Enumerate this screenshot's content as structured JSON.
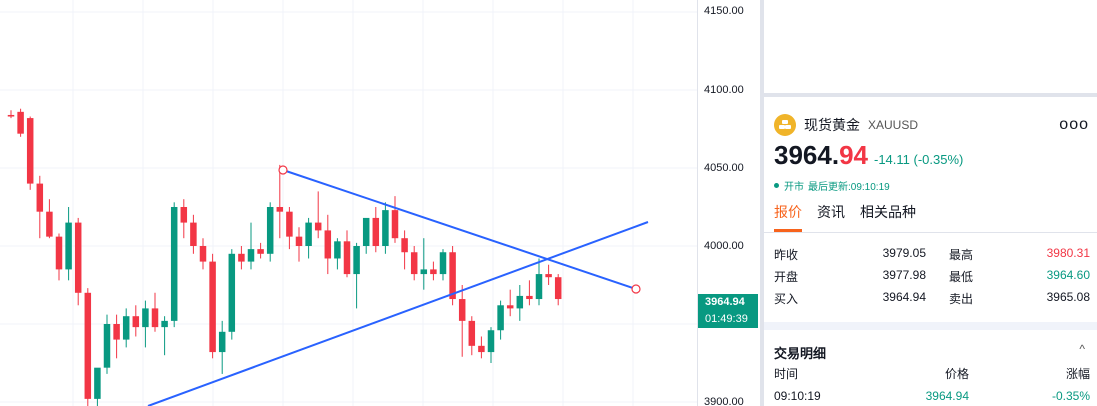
{
  "price_scale": {
    "ticks": [
      "4150.00",
      "4100.00",
      "4050.00",
      "4000.00",
      "3900.00"
    ],
    "current_price": "3964.94",
    "countdown": "01:49:39"
  },
  "colors": {
    "up": "#089981",
    "down": "#f23645",
    "trendline": "#2962ff",
    "accent": "#f7631c"
  },
  "chart": {
    "candle_count": 64,
    "note_values": "OHLC series approximated from screenshot"
  },
  "symbol": {
    "name": "现货黄金",
    "code": "XAUUSD",
    "icon": "gold-bars-icon",
    "more_icon": "ooo",
    "price_int": "3964.",
    "price_dec": "94",
    "change": "-14.11 (-0.35%)",
    "market_status": "开市",
    "last_update": "最后更新:09:10:19"
  },
  "tabs": [
    "报价",
    "资讯",
    "相关品种"
  ],
  "quotes": [
    {
      "label": "昨收",
      "value": "3979.05",
      "label2": "最高",
      "value2": "3980.31",
      "color2": "#f23645"
    },
    {
      "label": "开盘",
      "value": "3977.98",
      "label2": "最低",
      "value2": "3964.60",
      "color2": "#089981"
    },
    {
      "label": "买入",
      "value": "3964.94",
      "label2": "卖出",
      "value2": "3965.08",
      "color2": "#131722"
    }
  ],
  "trades": {
    "title": "交易明细",
    "collapse_icon": "^",
    "headers": [
      "时间",
      "价格",
      "涨幅"
    ],
    "rows": [
      {
        "time": "09:10:19",
        "price": "3964.94",
        "change": "-0.35%"
      }
    ]
  }
}
